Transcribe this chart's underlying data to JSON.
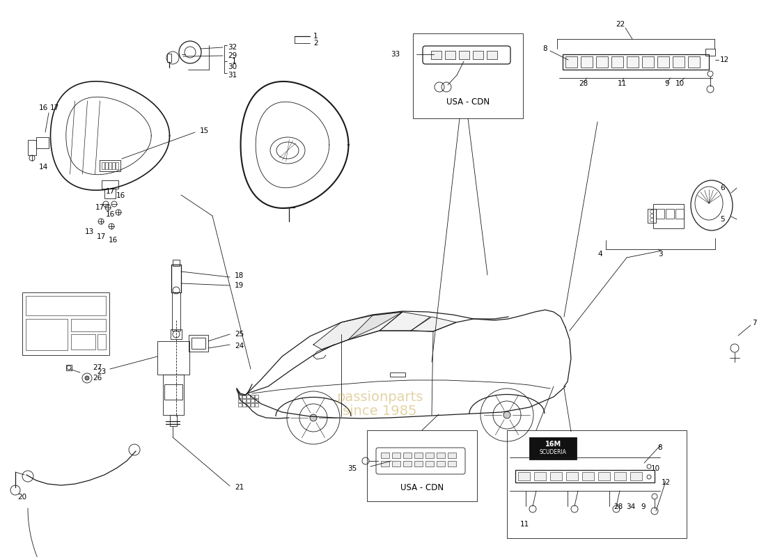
{
  "background_color": "#ffffff",
  "line_color": "#1a1a1a",
  "label_color": "#000000",
  "watermark_color": "#c8a84b",
  "watermark_text1": "passionparts",
  "watermark_text2": "since 1985",
  "usa_cdn_label": "USA - CDN",
  "fig_width": 11.0,
  "fig_height": 8.0,
  "dpi": 100,
  "lw_main": 1.2,
  "lw_med": 0.9,
  "lw_thin": 0.6,
  "fs_label": 8.5,
  "fs_small": 7.5
}
